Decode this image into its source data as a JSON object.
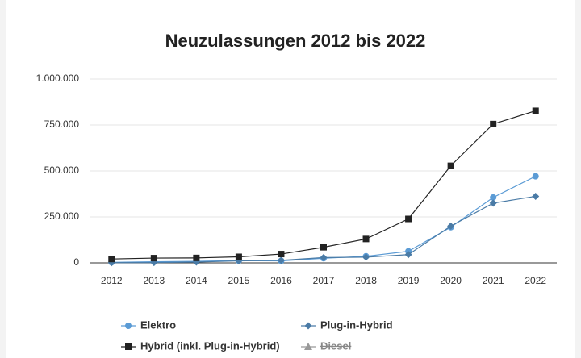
{
  "chart_data": {
    "type": "line",
    "title": "Neuzulassungen 2012 bis 2022",
    "categories": [
      "2012",
      "2013",
      "2014",
      "2015",
      "2016",
      "2017",
      "2018",
      "2019",
      "2020",
      "2021",
      "2022"
    ],
    "series": [
      {
        "name": "Elektro",
        "color": "#5b9bd5",
        "marker": "circle",
        "values": [
          3000,
          6000,
          8500,
          12000,
          11000,
          25000,
          36000,
          63000,
          194000,
          356000,
          471000
        ]
      },
      {
        "name": "Plug-in-Hybrid",
        "color": "#4a7ba6",
        "marker": "diamond",
        "values": [
          1000,
          1500,
          4500,
          11000,
          14000,
          29000,
          31000,
          45000,
          200000,
          325000,
          362000
        ]
      },
      {
        "name": "Hybrid (inkl. Plug-in-Hybrid)",
        "color": "#222222",
        "marker": "square",
        "values": [
          21000,
          26000,
          27000,
          33000,
          48000,
          85000,
          130000,
          239000,
          528000,
          755000,
          827000
        ]
      },
      {
        "name": "Diesel",
        "color": "#888888",
        "marker": "triangle",
        "hidden": true,
        "values": [
          null,
          null,
          null,
          null,
          null,
          null,
          null,
          null,
          null,
          null,
          null
        ]
      }
    ],
    "ylim": [
      0,
      1000000
    ],
    "yticks": [
      0,
      {
        "value": 250000,
        "label": "250.000"
      },
      {
        "value": 500000,
        "label": "500.000"
      },
      {
        "value": 750000,
        "label": "750.000"
      },
      {
        "value": 1000000,
        "label": "1.000.000"
      }
    ],
    "grid": true,
    "legend": "bottom"
  }
}
